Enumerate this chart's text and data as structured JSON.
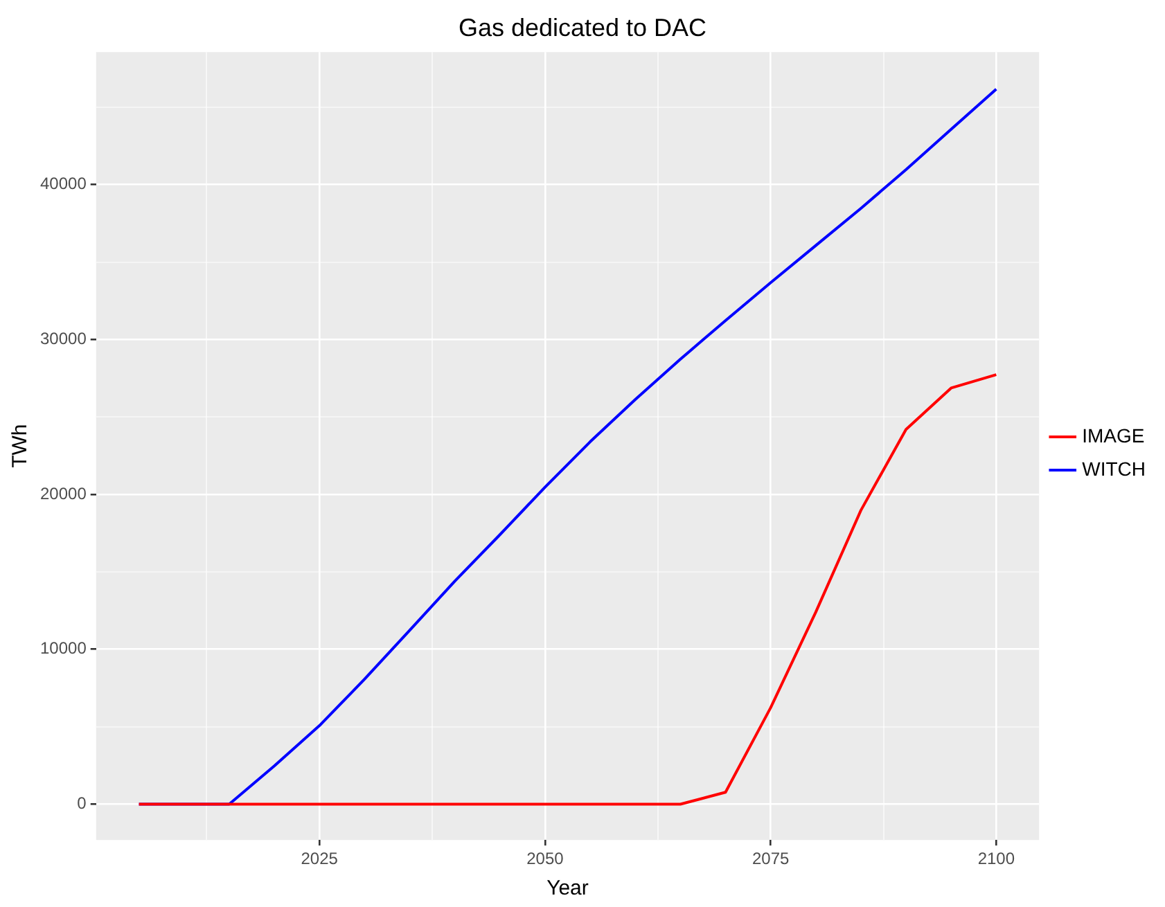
{
  "chart_data": {
    "type": "line",
    "title": "Gas dedicated to DAC",
    "xlabel": "Year",
    "ylabel": "TWh",
    "x": [
      2005,
      2010,
      2015,
      2020,
      2025,
      2030,
      2035,
      2040,
      2045,
      2050,
      2055,
      2060,
      2065,
      2070,
      2075,
      2080,
      2085,
      2090,
      2095,
      2100
    ],
    "series": [
      {
        "name": "IMAGE",
        "color": "#ff0000",
        "values": [
          0,
          0,
          0,
          0,
          0,
          0,
          0,
          0,
          0,
          0,
          0,
          0,
          0,
          770,
          6230,
          12400,
          18970,
          24200,
          26870,
          27730
        ]
      },
      {
        "name": "WITCH",
        "color": "#0000ff",
        "values": [
          0,
          0,
          0,
          2470,
          5070,
          8070,
          11230,
          14400,
          17400,
          20470,
          23400,
          26130,
          28730,
          31230,
          33670,
          36070,
          38470,
          40970,
          43570,
          46170
        ]
      }
    ],
    "xlim": [
      2000.25,
      2104.75
    ],
    "xticks": [
      {
        "value": 2012.5,
        "label": null
      },
      2025,
      {
        "value": 2037.5,
        "label": null
      },
      2050,
      {
        "value": 2062.5,
        "label": null
      },
      2075,
      {
        "value": 2087.5,
        "label": null
      },
      2100
    ],
    "ylim": [
      -2312,
      48562
    ],
    "yticks": [
      0,
      {
        "value": 5000,
        "label": null
      },
      10000,
      {
        "value": 15000,
        "label": null
      },
      20000,
      {
        "value": 25000,
        "label": null
      },
      30000,
      {
        "value": 35000,
        "label": null
      },
      40000,
      {
        "value": 45000,
        "label": null
      }
    ],
    "grid": true,
    "legend": "right",
    "marker": "none",
    "line_style": "solid"
  }
}
